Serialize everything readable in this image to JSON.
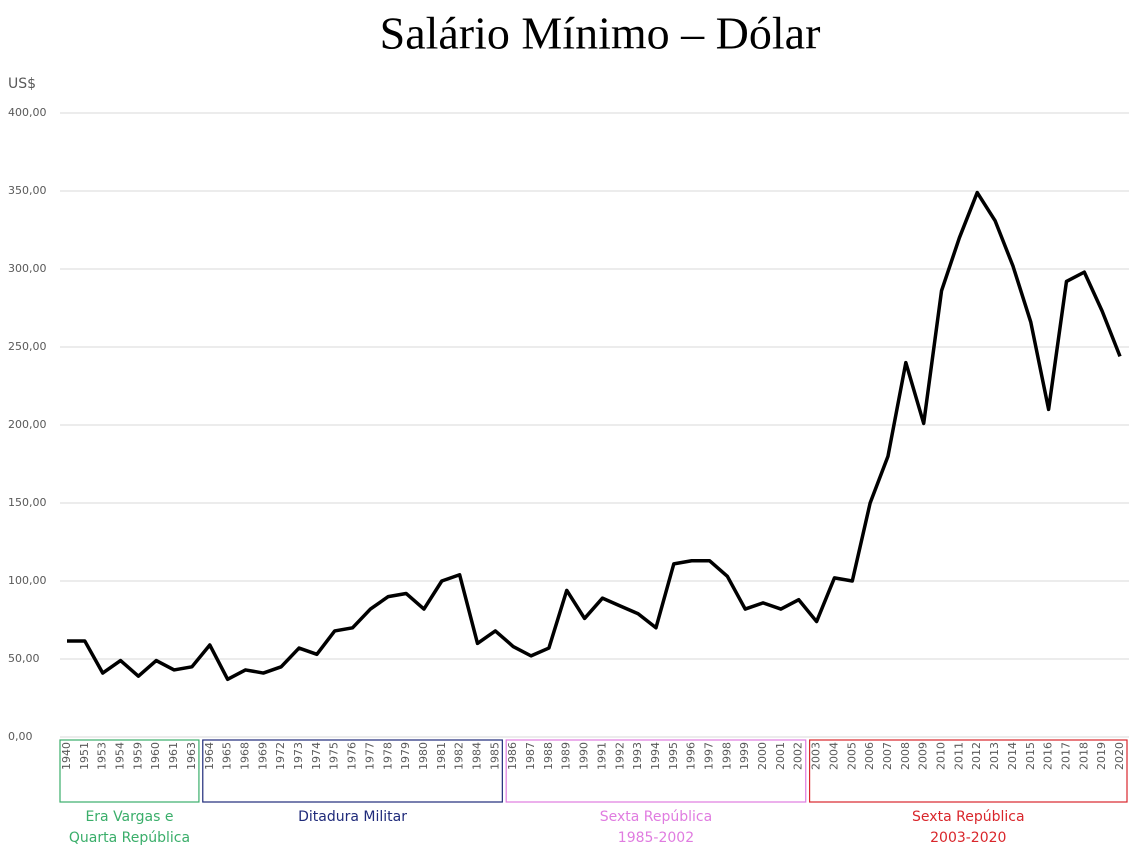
{
  "chart_data": {
    "type": "line",
    "title": "Salário Mínimo – Dólar",
    "y_label": "US$",
    "categories": [
      "1940",
      "1951",
      "1953",
      "1954",
      "1959",
      "1960",
      "1961",
      "1963",
      "1964",
      "1965",
      "1968",
      "1969",
      "1972",
      "1973",
      "1974",
      "1975",
      "1976",
      "1977",
      "1978",
      "1979",
      "1980",
      "1981",
      "1982",
      "1984",
      "1985",
      "1986",
      "1987",
      "1988",
      "1989",
      "1990",
      "1991",
      "1992",
      "1993",
      "1994",
      "1995",
      "1996",
      "1997",
      "1998",
      "1999",
      "2000",
      "2001",
      "2002",
      "2003",
      "2004",
      "2005",
      "2006",
      "2007",
      "2008",
      "2009",
      "2010",
      "2011",
      "2012",
      "2013",
      "2014",
      "2015",
      "2016",
      "2017",
      "2018",
      "2019",
      "2020"
    ],
    "values": [
      61.5,
      61.5,
      41,
      49,
      39,
      49,
      43,
      45,
      59,
      37,
      43,
      41,
      45,
      57,
      53,
      68,
      70,
      82,
      90,
      92,
      82,
      100,
      104,
      60,
      68,
      58,
      52,
      57,
      94,
      76,
      89,
      84,
      79,
      70,
      111,
      113,
      113,
      103,
      82,
      86,
      82,
      88,
      74,
      102,
      100,
      150,
      180,
      240,
      201,
      286,
      320,
      349,
      331,
      302,
      266,
      210,
      292,
      298,
      273,
      244
    ],
    "color": "#000000",
    "ylim": [
      0,
      400
    ],
    "yticks": [
      {
        "value": 0,
        "label": "0,00"
      },
      {
        "value": 50,
        "label": "50,00"
      },
      {
        "value": 100,
        "label": "100,00"
      },
      {
        "value": 150,
        "label": "150,00"
      },
      {
        "value": 200,
        "label": "200,00"
      },
      {
        "value": 250,
        "label": "250,00"
      },
      {
        "value": 300,
        "label": "300,00"
      },
      {
        "value": 350,
        "label": "350,00"
      },
      {
        "value": 400,
        "label": "400,00"
      }
    ],
    "grid": true,
    "periods": [
      {
        "lines": [
          "Era Vargas e",
          "Quarta República"
        ],
        "from": "1940",
        "to": "1963",
        "color": "#3aae6a"
      },
      {
        "lines": [
          "Ditadura Militar"
        ],
        "from": "1964",
        "to": "1985",
        "color": "#1f2a7a"
      },
      {
        "lines": [
          "Sexta República",
          "1985-2002"
        ],
        "from": "1986",
        "to": "2002",
        "color": "#e07ce0"
      },
      {
        "lines": [
          "Sexta República",
          "2003-2020"
        ],
        "from": "2003",
        "to": "2020",
        "color": "#d9262b"
      }
    ]
  }
}
